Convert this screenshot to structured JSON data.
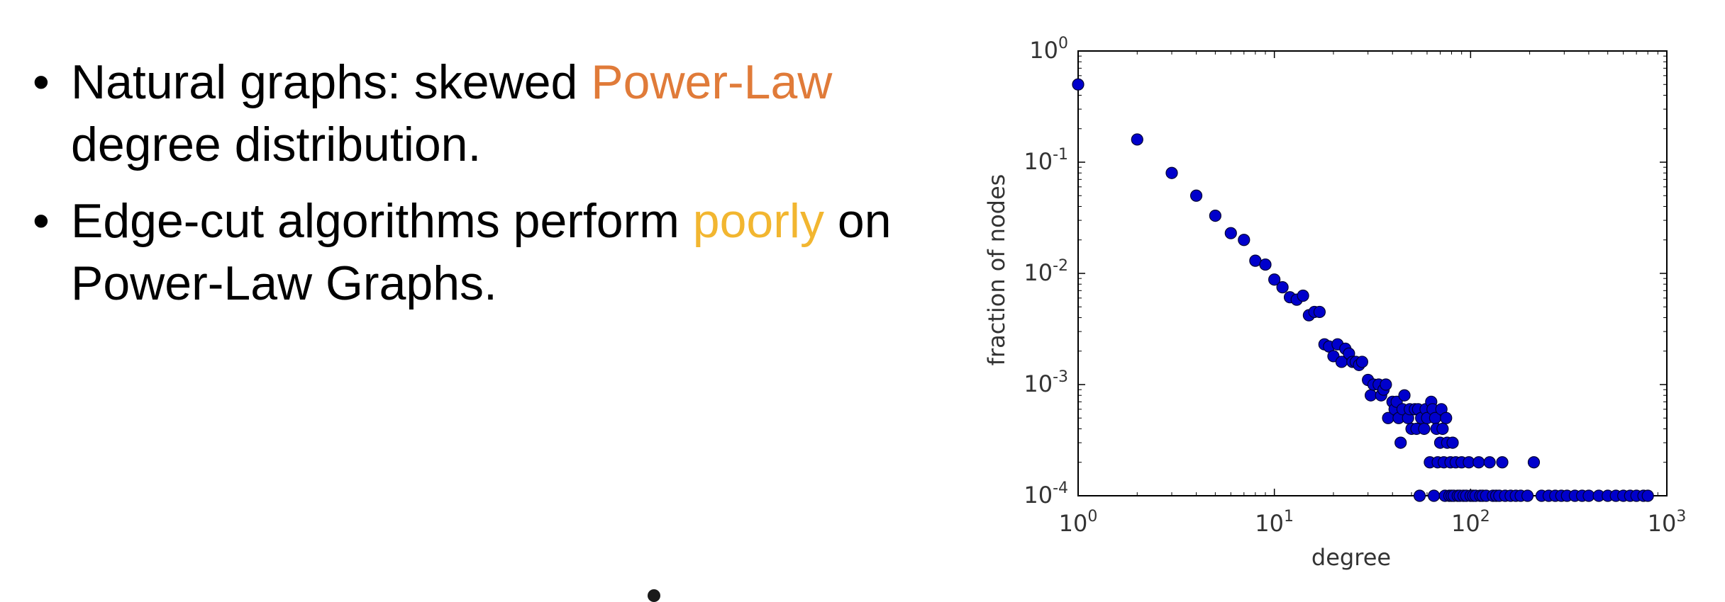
{
  "bullets": [
    {
      "parts": [
        {
          "text": "Natural graphs: skewed ",
          "color": "#000000"
        },
        {
          "text": "Power-Law",
          "color": "#E07B39"
        },
        {
          "text": " degree distribution.",
          "color": "#000000"
        }
      ]
    },
    {
      "parts": [
        {
          "text": "Edge-cut algorithms perform ",
          "color": "#000000"
        },
        {
          "text": "poorly",
          "color": "#F2B630"
        },
        {
          "text": " on Power-Law Graphs.",
          "color": "#000000"
        }
      ]
    }
  ],
  "colors": {
    "text": "#000000",
    "power_law_highlight": "#E07B39",
    "poorly_highlight": "#F2B630",
    "marker_fill": "#0000CC",
    "marker_edge": "#000033"
  },
  "chart_data": {
    "type": "scatter",
    "title": "",
    "xlabel": "degree",
    "ylabel": "fraction of nodes",
    "xscale": "log",
    "yscale": "log",
    "xlim": [
      1,
      1000
    ],
    "ylim": [
      0.0001,
      1
    ],
    "xticks": [
      {
        "base": "10",
        "exp": "0"
      },
      {
        "base": "10",
        "exp": "1"
      },
      {
        "base": "10",
        "exp": "2"
      },
      {
        "base": "10",
        "exp": "3"
      }
    ],
    "yticks": [
      {
        "base": "10",
        "exp": "0"
      },
      {
        "base": "10",
        "exp": "-1"
      },
      {
        "base": "10",
        "exp": "-2"
      },
      {
        "base": "10",
        "exp": "-3"
      },
      {
        "base": "10",
        "exp": "-4"
      }
    ],
    "grid": false,
    "legend": "none",
    "series": [
      {
        "points": [
          [
            1,
            0.5
          ],
          [
            2,
            0.16
          ],
          [
            3,
            0.08
          ],
          [
            4,
            0.05
          ],
          [
            5,
            0.033
          ],
          [
            6,
            0.023
          ],
          [
            7,
            0.02
          ],
          [
            8,
            0.013
          ],
          [
            9,
            0.012
          ],
          [
            10,
            0.0088
          ],
          [
            11,
            0.0075
          ],
          [
            12,
            0.0061
          ],
          [
            13,
            0.0058
          ],
          [
            14,
            0.0063
          ],
          [
            15,
            0.0042
          ],
          [
            16,
            0.0045
          ],
          [
            17,
            0.0045
          ],
          [
            18,
            0.0023
          ],
          [
            19,
            0.0022
          ],
          [
            20,
            0.0018
          ],
          [
            21,
            0.0023
          ],
          [
            22,
            0.0016
          ],
          [
            23,
            0.0021
          ],
          [
            24,
            0.0019
          ],
          [
            25,
            0.0016
          ],
          [
            26,
            0.0016
          ],
          [
            27,
            0.0015
          ],
          [
            28,
            0.0016
          ],
          [
            30,
            0.0011
          ],
          [
            31,
            0.0008
          ],
          [
            32,
            0.001
          ],
          [
            34,
            0.001
          ],
          [
            35,
            0.0008
          ],
          [
            36,
            0.0009
          ],
          [
            37,
            0.001
          ],
          [
            38,
            0.0005
          ],
          [
            40,
            0.0007
          ],
          [
            41,
            0.0006
          ],
          [
            42,
            0.0007
          ],
          [
            43,
            0.0005
          ],
          [
            44,
            0.0003
          ],
          [
            45,
            0.0006
          ],
          [
            46,
            0.0008
          ],
          [
            48,
            0.0005
          ],
          [
            49,
            0.0006
          ],
          [
            50,
            0.0004
          ],
          [
            52,
            0.0006
          ],
          [
            53,
            0.0004
          ],
          [
            54,
            0.0006
          ],
          [
            55,
            0.0001
          ],
          [
            56,
            0.0005
          ],
          [
            58,
            0.0004
          ],
          [
            59,
            0.0006
          ],
          [
            60,
            0.0005
          ],
          [
            62,
            0.0002
          ],
          [
            63,
            0.0007
          ],
          [
            64,
            0.0006
          ],
          [
            65,
            0.0001
          ],
          [
            66,
            0.0005
          ],
          [
            67,
            0.0004
          ],
          [
            68,
            0.0002
          ],
          [
            70,
            0.0003
          ],
          [
            71,
            0.0006
          ],
          [
            72,
            0.0004
          ],
          [
            73,
            0.0002
          ],
          [
            74,
            0.0001
          ],
          [
            75,
            0.0005
          ],
          [
            76,
            0.0003
          ],
          [
            78,
            0.0001
          ],
          [
            79,
            0.0002
          ],
          [
            80,
            0.0001
          ],
          [
            81,
            0.0003
          ],
          [
            82,
            0.0001
          ],
          [
            84,
            0.0002
          ],
          [
            86,
            0.0001
          ],
          [
            88,
            0.0001
          ],
          [
            90,
            0.0002
          ],
          [
            92,
            0.0001
          ],
          [
            95,
            0.0001
          ],
          [
            98,
            0.0002
          ],
          [
            100,
            0.0001
          ],
          [
            103,
            0.0001
          ],
          [
            106,
            0.0001
          ],
          [
            110,
            0.0002
          ],
          [
            112,
            0.0001
          ],
          [
            115,
            0.0001
          ],
          [
            120,
            0.0001
          ],
          [
            125,
            0.0002
          ],
          [
            130,
            0.0001
          ],
          [
            135,
            0.0001
          ],
          [
            140,
            0.0001
          ],
          [
            145,
            0.0002
          ],
          [
            150,
            0.0001
          ],
          [
            160,
            0.0001
          ],
          [
            170,
            0.0001
          ],
          [
            180,
            0.0001
          ],
          [
            195,
            0.0001
          ],
          [
            210,
            0.0002
          ],
          [
            230,
            0.0001
          ],
          [
            250,
            0.0001
          ],
          [
            270,
            0.0001
          ],
          [
            290,
            0.0001
          ],
          [
            310,
            0.0001
          ],
          [
            340,
            0.0001
          ],
          [
            370,
            0.0001
          ],
          [
            400,
            0.0001
          ],
          [
            450,
            0.0001
          ],
          [
            500,
            0.0001
          ],
          [
            550,
            0.0001
          ],
          [
            600,
            0.0001
          ],
          [
            650,
            0.0001
          ],
          [
            700,
            0.0001
          ],
          [
            760,
            0.0001
          ],
          [
            800,
            0.0001
          ]
        ]
      }
    ]
  }
}
